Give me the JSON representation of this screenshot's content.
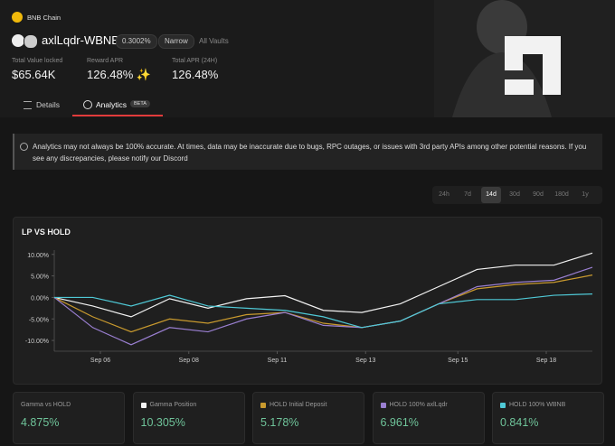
{
  "header": {
    "chain": "BNB Chain",
    "pair": "axlLqdr-WBNB",
    "fee": "0.3002%",
    "range": "Narrow",
    "back_link": "All Vaults"
  },
  "stats": [
    {
      "label": "Total Value locked",
      "value": "$65.64K"
    },
    {
      "label": "Reward APR",
      "value": "126.48% ✨"
    },
    {
      "label": "Total APR (24H)",
      "value": "126.48%"
    }
  ],
  "tabs": {
    "items": [
      "Details",
      "Analytics"
    ],
    "badge": "BETA",
    "selected": 1
  },
  "notice": {
    "text": "Analytics may not always be 100% accurate. At times, data may be inaccurate due to bugs, RPC outages, or issues with 3rd party APIs among other potential reasons. If you see any discrepancies, please notify our Discord"
  },
  "time_ranges": {
    "items": [
      "24h",
      "7d",
      "14d",
      "30d",
      "90d",
      "180d",
      "1y"
    ],
    "selected": 2
  },
  "chart_data": {
    "type": "line",
    "title": "LP VS HOLD",
    "x": [
      0,
      1,
      2,
      3,
      4,
      5,
      6,
      7,
      8,
      9,
      10,
      11,
      12,
      13,
      14
    ],
    "xlim": [
      0,
      14
    ],
    "xticks": [
      {
        "value": 1.2,
        "label": "Sep 06"
      },
      {
        "value": 3.5,
        "label": "Sep 08"
      },
      {
        "value": 5.8,
        "label": "Sep 11"
      },
      {
        "value": 8.1,
        "label": "Sep 13"
      },
      {
        "value": 10.5,
        "label": "Sep 15"
      },
      {
        "value": 12.8,
        "label": "Sep 18"
      }
    ],
    "ylim": [
      -12.5,
      11
    ],
    "yticks": [
      {
        "value": 10,
        "label": "10.00%"
      },
      {
        "value": 5,
        "label": "5.00%"
      },
      {
        "value": 0,
        "label": "0.00%"
      },
      {
        "value": -5,
        "label": "-5.00%"
      },
      {
        "value": -10,
        "label": "-10.00%"
      }
    ],
    "series": [
      {
        "color": "#f2f2f2",
        "values": [
          0,
          -2,
          -4.5,
          -0.3,
          -2.5,
          -0.3,
          0.4,
          -3,
          -3.5,
          -1.5,
          2.5,
          6.5,
          7.5,
          7.5,
          10.3
        ]
      },
      {
        "color": "#c99a2e",
        "values": [
          0,
          -4.5,
          -8,
          -5,
          -6,
          -4,
          -3.5,
          -6,
          -7,
          -5.5,
          -1.5,
          2,
          3,
          3.5,
          5.2
        ]
      },
      {
        "color": "#9a7fd1",
        "values": [
          0,
          -7,
          -11,
          -7,
          -8,
          -5,
          -3.5,
          -6.5,
          -7,
          -5.5,
          -1.5,
          2.5,
          3.5,
          4,
          7
        ]
      },
      {
        "color": "#4fc9d6",
        "values": [
          0,
          0,
          -2,
          0.5,
          -2,
          -2.5,
          -3,
          -4.5,
          -7,
          -5.5,
          -1.5,
          -0.5,
          -0.5,
          0.5,
          0.8
        ]
      }
    ]
  },
  "cards": [
    {
      "label": "Gamma vs HOLD",
      "value": "4.875%"
    },
    {
      "label": "Gamma Position",
      "value": "10.305%"
    },
    {
      "label": "HOLD Initial Deposit",
      "value": "5.178%"
    },
    {
      "label": "HOLD 100% axlLqdr",
      "value": "6.961%"
    },
    {
      "label": "HOLD 100% WBNB",
      "value": "0.841%"
    }
  ]
}
